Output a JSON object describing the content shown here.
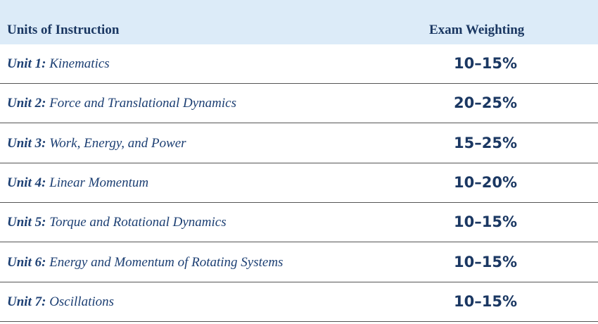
{
  "table": {
    "header": [
      "Units of Instruction",
      "Exam Weighting"
    ],
    "rows": [
      {
        "unit": "Unit 1:",
        "name": "Kinematics",
        "weighting": "10–15%"
      },
      {
        "unit": "Unit 2:",
        "name": "Force and Translational Dynamics",
        "weighting": "20–25%"
      },
      {
        "unit": "Unit 3:",
        "name": "Work, Energy, and Power",
        "weighting": "15–25%"
      },
      {
        "unit": "Unit 4:",
        "name": "Linear Momentum",
        "weighting": "10–20%"
      },
      {
        "unit": "Unit 5:",
        "name": "Torque and Rotational Dynamics",
        "weighting": "10–15%"
      },
      {
        "unit": "Unit 6:",
        "name": "Energy and Momentum of Rotating Systems",
        "weighting": "10–15%"
      },
      {
        "unit": "Unit 7:",
        "name": "Oscillations",
        "weighting": "10–15%"
      }
    ]
  }
}
